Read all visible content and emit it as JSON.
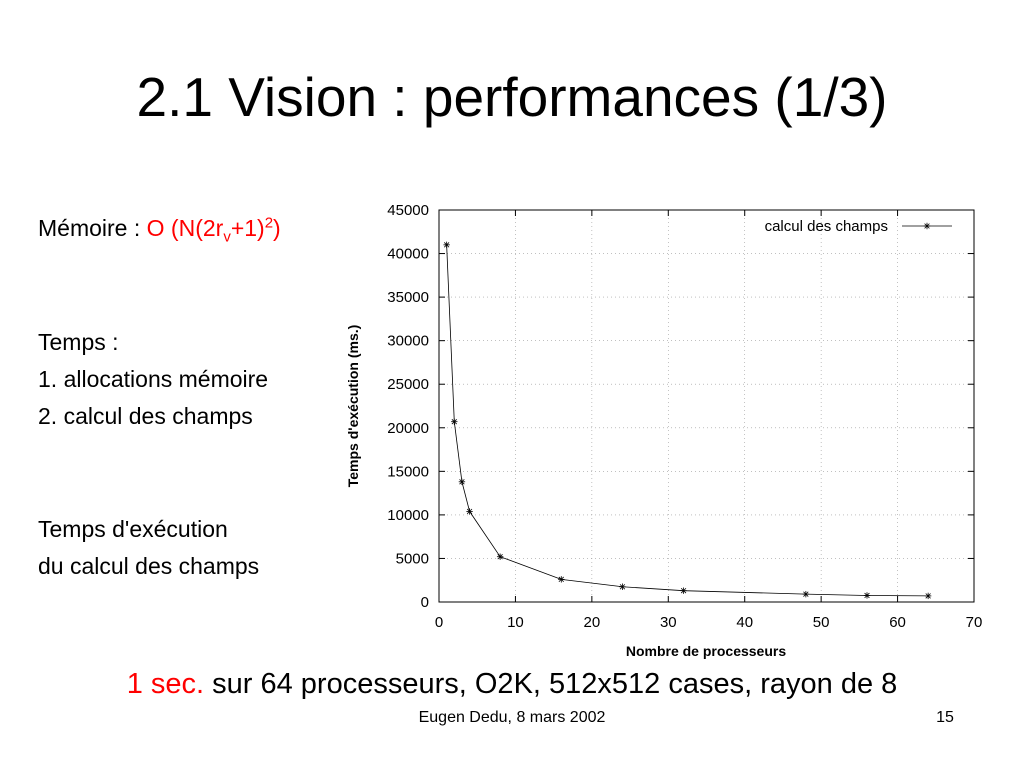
{
  "slide": {
    "title": "2.1 Vision : performances (1/3)",
    "memory": {
      "label": "Mémoire : ",
      "formula_a": "O (N(2r",
      "formula_sub": "v",
      "formula_b": "+1)",
      "formula_sup": "2",
      "formula_c": ")"
    },
    "time_header": "Temps :",
    "time_items": [
      "1. allocations mémoire",
      "2. calcul des champs"
    ],
    "exec_caption": [
      "Temps d'exécution",
      "du calcul des champs"
    ],
    "bottom_highlight": "1 sec.",
    "bottom_rest": " sur 64 processeurs, O2K, 512x512 cases, rayon de 8",
    "footer_author": "Eugen Dedu, 8 mars 2002",
    "page_number": "15",
    "colors": {
      "accent": "#ff0000",
      "text": "#000000"
    }
  },
  "chart_data": {
    "type": "line",
    "xlabel": "Nombre de processeurs",
    "ylabel": "Temps d'exécution (ms.)",
    "xlim": [
      0,
      70
    ],
    "ylim": [
      0,
      45000
    ],
    "xticks": [
      0,
      10,
      20,
      30,
      40,
      50,
      60,
      70
    ],
    "yticks": [
      0,
      5000,
      10000,
      15000,
      20000,
      25000,
      30000,
      35000,
      40000,
      45000
    ],
    "grid": true,
    "legend_position": "top-right",
    "series": [
      {
        "name": "calcul des champs",
        "marker": "star",
        "x": [
          1,
          2,
          3,
          4,
          8,
          16,
          24,
          32,
          48,
          56,
          64
        ],
        "y": [
          41000,
          20700,
          13800,
          10400,
          5200,
          2600,
          1750,
          1300,
          900,
          750,
          700
        ]
      }
    ]
  }
}
